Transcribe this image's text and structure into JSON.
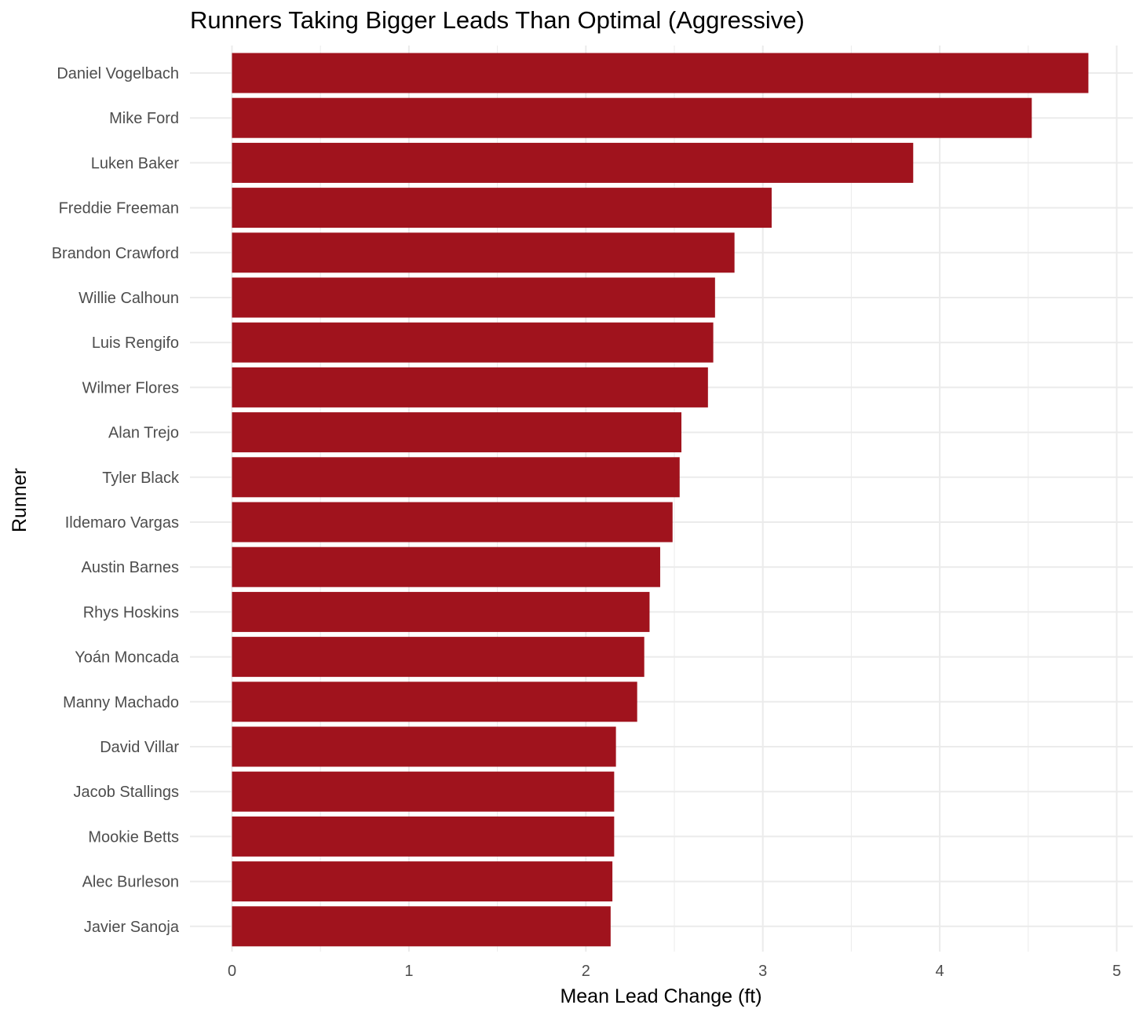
{
  "chart_data": {
    "type": "bar",
    "orientation": "horizontal",
    "title": "Runners Taking Bigger Leads Than Optimal (Aggressive)",
    "xlabel": "Mean Lead Change (ft)",
    "ylabel": "Runner",
    "xlim": [
      0,
      5
    ],
    "xticks": [
      0,
      1,
      2,
      3,
      4,
      5
    ],
    "grid": true,
    "bar_color": "#A0131D",
    "categories": [
      "Daniel Vogelbach",
      "Mike Ford",
      "Luken Baker",
      "Freddie Freeman",
      "Brandon Crawford",
      "Willie Calhoun",
      "Luis Rengifo",
      "Wilmer Flores",
      "Alan Trejo",
      "Tyler Black",
      "Ildemaro Vargas",
      "Austin Barnes",
      "Rhys Hoskins",
      "Yoán Moncada",
      "Manny Machado",
      "David Villar",
      "Jacob Stallings",
      "Mookie Betts",
      "Alec Burleson",
      "Javier Sanoja"
    ],
    "values": [
      4.84,
      4.52,
      3.85,
      3.05,
      2.84,
      2.73,
      2.72,
      2.69,
      2.54,
      2.53,
      2.49,
      2.42,
      2.36,
      2.33,
      2.29,
      2.17,
      2.16,
      2.16,
      2.15,
      2.14
    ]
  }
}
